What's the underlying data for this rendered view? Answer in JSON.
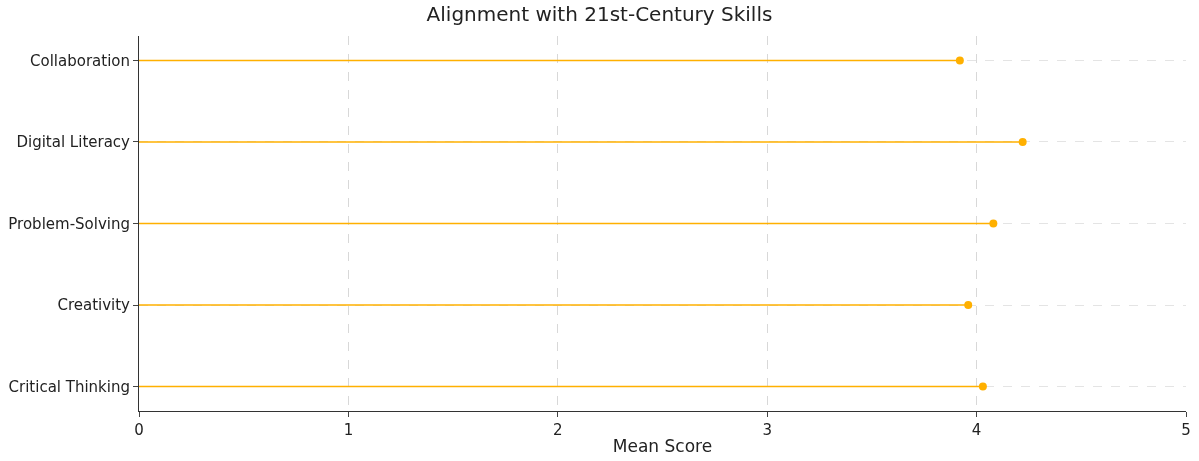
{
  "chart_data": {
    "type": "lollipop",
    "orientation": "horizontal",
    "title": "Alignment with 21st-Century Skills",
    "xlabel": "Mean Score",
    "categories": [
      "Collaboration",
      "Digital Literacy",
      "Problem-Solving",
      "Creativity",
      "Critical Thinking"
    ],
    "values": [
      3.92,
      4.22,
      4.08,
      3.96,
      4.03
    ],
    "color": "#ffb000",
    "marker": "circle",
    "xlim": [
      0,
      5
    ],
    "xticks": [
      0,
      1,
      2,
      3,
      4,
      5
    ],
    "grid": true
  }
}
